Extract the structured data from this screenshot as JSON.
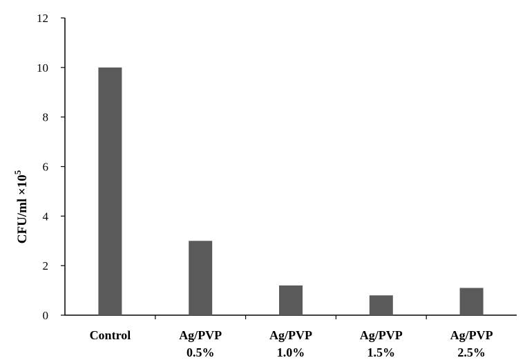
{
  "chart_data": {
    "type": "bar",
    "categories": [
      [
        "Control"
      ],
      [
        "Ag/PVP",
        "0.5%"
      ],
      [
        "Ag/PVP",
        "1.0%"
      ],
      [
        "Ag/PVP",
        "1.5%"
      ],
      [
        "Ag/PVP",
        "2.5%"
      ]
    ],
    "values": [
      10,
      3,
      1.2,
      0.8,
      1.1
    ],
    "ylabel": "CFU/ml ×10",
    "ylabel_superscript": "5",
    "ylim": [
      0,
      12
    ],
    "yticks": [
      "0",
      "2",
      "4",
      "6",
      "8",
      "10",
      "12"
    ],
    "grid": false,
    "legend": "none",
    "colors": {
      "bar": "#5a5a5a",
      "axis": "#000000"
    }
  }
}
